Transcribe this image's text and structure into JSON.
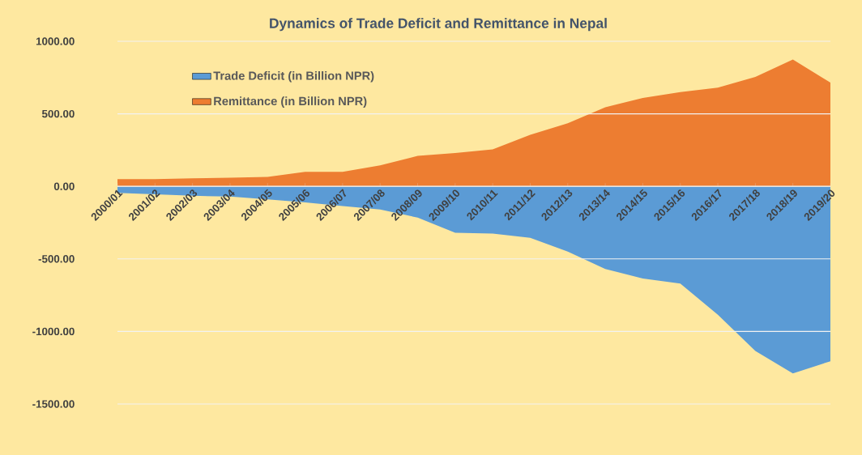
{
  "chart_data": {
    "type": "area",
    "title": "Dynamics of Trade Deficit and Remittance in Nepal",
    "categories": [
      "2000/01",
      "2001/02",
      "2002/03",
      "2003/04",
      "2004/05",
      "2005/06",
      "2006/07",
      "2007/08",
      "2008/09",
      "2009/10",
      "2010/11",
      "2011/12",
      "2012/13",
      "2013/14",
      "2014/15",
      "2015/16",
      "2016/17",
      "2017/18",
      "2018/19",
      "2019/20"
    ],
    "series": [
      {
        "name": "Trade Deficit (in Billion NPR)",
        "color": "#5b9bd5",
        "values": [
          -45,
          -55,
          -65,
          -70,
          -90,
          -110,
          -135,
          -160,
          -215,
          -320,
          -325,
          -355,
          -450,
          -570,
          -635,
          -670,
          -885,
          -1135,
          -1290,
          -1205
        ]
      },
      {
        "name": "Remittance (in Billion NPR)",
        "color": "#ed7d31",
        "values": [
          50,
          50,
          55,
          60,
          65,
          100,
          100,
          145,
          210,
          230,
          255,
          355,
          435,
          545,
          610,
          650,
          680,
          755,
          875,
          715
        ]
      }
    ],
    "ylim": [
      -1500,
      1000
    ],
    "yticks": [
      {
        "value": -1500,
        "label": "-1500.00"
      },
      {
        "value": -1000,
        "label": "-1000.00"
      },
      {
        "value": -500,
        "label": "-500.00"
      },
      {
        "value": 0,
        "label": "0.00"
      },
      {
        "value": 500,
        "label": "500.00"
      },
      {
        "value": 1000,
        "label": "1000.00"
      }
    ],
    "grid": "y",
    "legend": "top left"
  }
}
